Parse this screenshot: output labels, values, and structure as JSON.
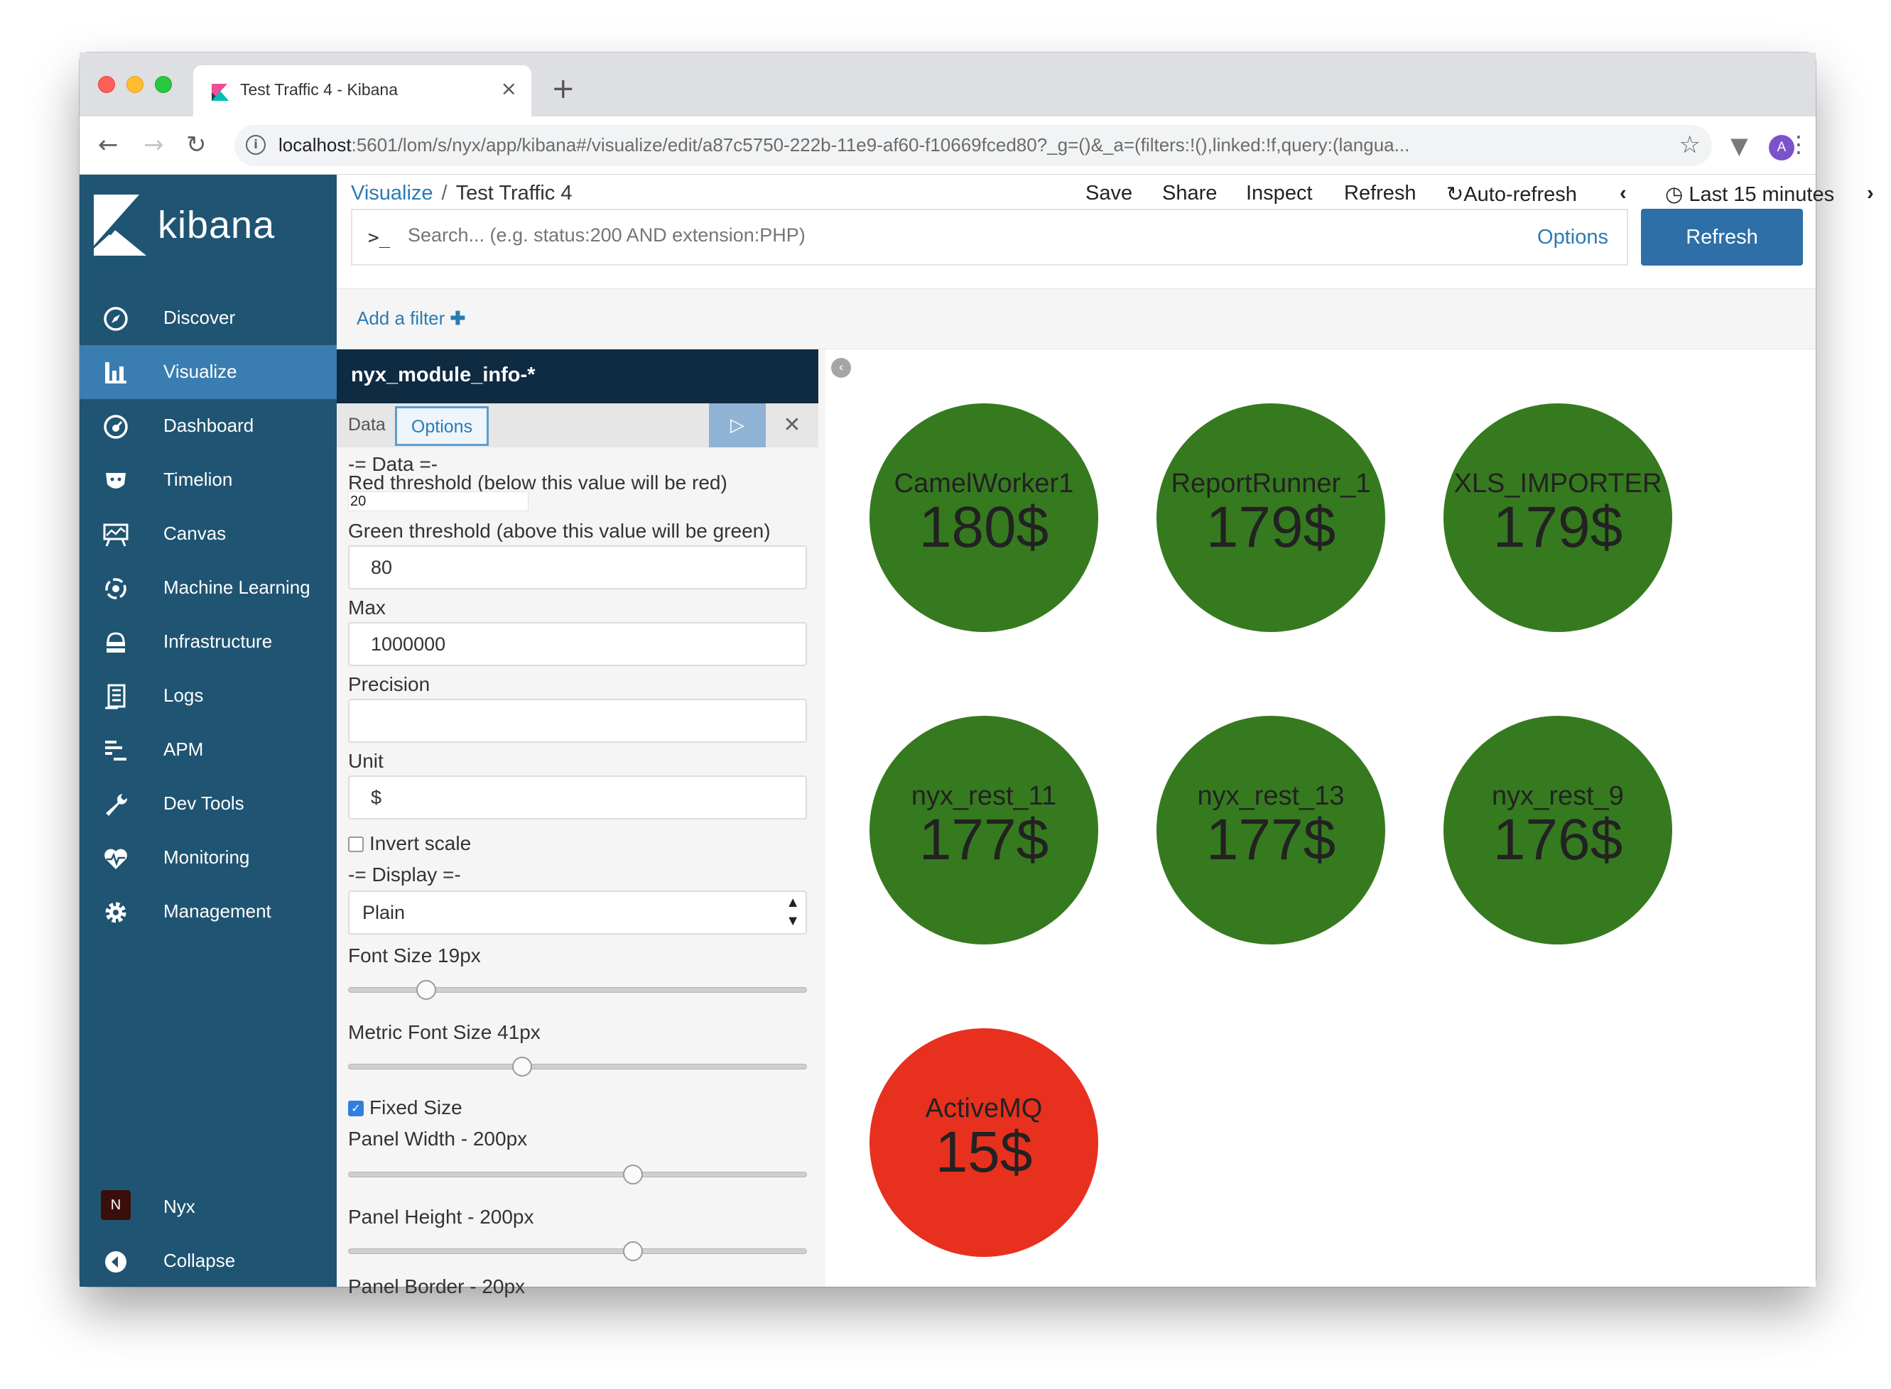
{
  "browser": {
    "tab_title": "Test Traffic 4 - Kibana",
    "tab_close": "×",
    "new_tab": "+",
    "url_host": "localhost",
    "url_rest": ":5601/lom/s/nyx/app/kibana#/visualize/edit/a87c5750-222b-11e9-af60-f10669fced80?_g=()&_a=(filters:!(),linked:!f,query:(langua...",
    "profile_initial": "A"
  },
  "sidebar": {
    "brand": "kibana",
    "items": [
      {
        "label": "Discover",
        "icon": "compass-icon"
      },
      {
        "label": "Visualize",
        "icon": "bar-chart-icon"
      },
      {
        "label": "Dashboard",
        "icon": "dashboard-icon"
      },
      {
        "label": "Timelion",
        "icon": "timelion-icon"
      },
      {
        "label": "Canvas",
        "icon": "canvas-icon"
      },
      {
        "label": "Machine Learning",
        "icon": "machine-learning-icon"
      },
      {
        "label": "Infrastructure",
        "icon": "infrastructure-icon"
      },
      {
        "label": "Logs",
        "icon": "logs-icon"
      },
      {
        "label": "APM",
        "icon": "apm-icon"
      },
      {
        "label": "Dev Tools",
        "icon": "wrench-icon"
      },
      {
        "label": "Monitoring",
        "icon": "heartbeat-icon"
      },
      {
        "label": "Management",
        "icon": "gear-icon"
      }
    ],
    "space_badge": "N",
    "space_label": "Nyx",
    "collapse_label": "Collapse",
    "active_item": "Visualize"
  },
  "header": {
    "breadcrumb_root": "Visualize",
    "breadcrumb_sep": "/",
    "breadcrumb_current": "Test Traffic 4",
    "menu": [
      "Save",
      "Share",
      "Inspect",
      "Refresh"
    ],
    "auto_refresh": "Auto-refresh",
    "time_range": "Last 15 minutes",
    "search_prompt": ">_",
    "search_placeholder": "Search... (e.g. status:200 AND extension:PHP)",
    "options_link": "Options",
    "refresh_button": "Refresh",
    "add_filter": "Add a filter"
  },
  "editor": {
    "index_pattern": "nyx_module_info-*",
    "tabs": [
      "Data",
      "Options"
    ],
    "active_tab": "Options",
    "data_section": "-= Data =-",
    "red_threshold_label": "Red threshold (below this value will be red)",
    "red_threshold_value": "20",
    "green_threshold_label": "Green threshold (above this value will be green)",
    "green_threshold_value": "80",
    "max_label": "Max",
    "max_value": "1000000",
    "precision_label": "Precision",
    "precision_value": "",
    "unit_label": "Unit",
    "unit_value": "$",
    "invert_scale_label": "Invert scale",
    "invert_scale_checked": false,
    "display_section": "-= Display =-",
    "display_select": "Plain",
    "font_size_label": "Font Size 19px",
    "font_size_fraction": 0.17,
    "metric_font_size_label": "Metric Font Size 41px",
    "metric_font_size_fraction": 0.38,
    "fixed_size_label": "Fixed Size",
    "fixed_size_checked": true,
    "panel_width_label": "Panel Width - 200px",
    "panel_width_fraction": 0.62,
    "panel_height_label": "Panel Height - 200px",
    "panel_height_fraction": 0.62,
    "panel_border_label": "Panel Border - 20px"
  },
  "colors": {
    "green": "#367a1f",
    "red": "#e8301f",
    "sidebar": "#1f5472",
    "accent": "#2d6fa6"
  },
  "metrics": [
    {
      "label": "CamelWorker1",
      "value": "180$",
      "status": "green"
    },
    {
      "label": "ReportRunner_1",
      "value": "179$",
      "status": "green"
    },
    {
      "label": "XLS_IMPORTER",
      "value": "179$",
      "status": "green"
    },
    {
      "label": "nyx_rest_11",
      "value": "177$",
      "status": "green"
    },
    {
      "label": "nyx_rest_13",
      "value": "177$",
      "status": "green"
    },
    {
      "label": "nyx_rest_9",
      "value": "176$",
      "status": "green"
    },
    {
      "label": "ActiveMQ",
      "value": "15$",
      "status": "red"
    }
  ]
}
